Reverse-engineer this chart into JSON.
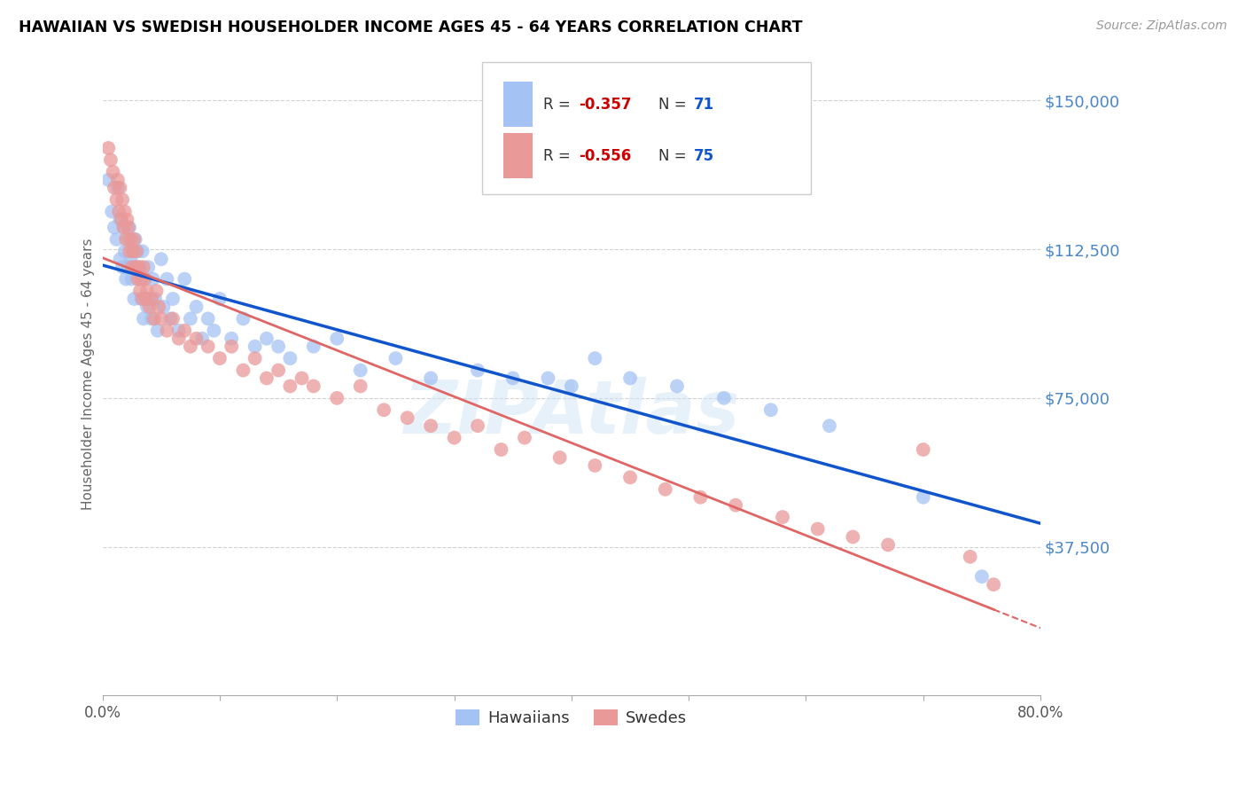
{
  "title": "HAWAIIAN VS SWEDISH HOUSEHOLDER INCOME AGES 45 - 64 YEARS CORRELATION CHART",
  "source": "Source: ZipAtlas.com",
  "ylabel": "Householder Income Ages 45 - 64 years",
  "xlim": [
    0.0,
    0.8
  ],
  "ylim": [
    0,
    162000
  ],
  "yticks": [
    37500,
    75000,
    112500,
    150000
  ],
  "ytick_labels": [
    "$37,500",
    "$75,000",
    "$112,500",
    "$150,000"
  ],
  "xticks": [
    0.0,
    0.1,
    0.2,
    0.3,
    0.4,
    0.5,
    0.6,
    0.7,
    0.8
  ],
  "hawaiian_color": "#a4c2f4",
  "swedish_color": "#ea9999",
  "hawaiian_line_color": "#1155cc",
  "swedish_line_color": "#e06666",
  "legend_R_hawaiian": "-0.357",
  "legend_N_hawaiian": "71",
  "legend_R_swedish": "-0.556",
  "legend_N_swedish": "75",
  "watermark": "ZIPAtlas",
  "background_color": "#ffffff",
  "grid_color": "#cccccc",
  "label_color": "#4a86c8",
  "hawaiians_x": [
    0.005,
    0.008,
    0.01,
    0.012,
    0.013,
    0.015,
    0.015,
    0.017,
    0.018,
    0.019,
    0.02,
    0.022,
    0.022,
    0.023,
    0.024,
    0.025,
    0.026,
    0.027,
    0.028,
    0.028,
    0.03,
    0.031,
    0.032,
    0.033,
    0.034,
    0.035,
    0.036,
    0.037,
    0.038,
    0.039,
    0.04,
    0.042,
    0.043,
    0.045,
    0.047,
    0.05,
    0.052,
    0.055,
    0.058,
    0.06,
    0.065,
    0.07,
    0.075,
    0.08,
    0.085,
    0.09,
    0.095,
    0.1,
    0.11,
    0.12,
    0.13,
    0.14,
    0.15,
    0.16,
    0.18,
    0.2,
    0.22,
    0.25,
    0.28,
    0.32,
    0.35,
    0.38,
    0.4,
    0.42,
    0.45,
    0.49,
    0.53,
    0.57,
    0.62,
    0.7,
    0.75
  ],
  "hawaiians_y": [
    130000,
    122000,
    118000,
    115000,
    128000,
    120000,
    110000,
    108000,
    118000,
    112000,
    105000,
    115000,
    108000,
    118000,
    110000,
    105000,
    112000,
    100000,
    115000,
    108000,
    112000,
    105000,
    108000,
    100000,
    112000,
    95000,
    105000,
    100000,
    98000,
    108000,
    100000,
    95000,
    105000,
    100000,
    92000,
    110000,
    98000,
    105000,
    95000,
    100000,
    92000,
    105000,
    95000,
    98000,
    90000,
    95000,
    92000,
    100000,
    90000,
    95000,
    88000,
    90000,
    88000,
    85000,
    88000,
    90000,
    82000,
    85000,
    80000,
    82000,
    80000,
    80000,
    78000,
    85000,
    80000,
    78000,
    75000,
    72000,
    68000,
    50000,
    30000
  ],
  "swedes_x": [
    0.005,
    0.007,
    0.009,
    0.01,
    0.012,
    0.013,
    0.014,
    0.015,
    0.016,
    0.017,
    0.018,
    0.019,
    0.02,
    0.021,
    0.022,
    0.023,
    0.024,
    0.025,
    0.026,
    0.027,
    0.028,
    0.029,
    0.03,
    0.031,
    0.032,
    0.033,
    0.034,
    0.035,
    0.036,
    0.037,
    0.038,
    0.04,
    0.042,
    0.044,
    0.046,
    0.048,
    0.05,
    0.055,
    0.06,
    0.065,
    0.07,
    0.075,
    0.08,
    0.09,
    0.1,
    0.11,
    0.12,
    0.13,
    0.14,
    0.15,
    0.16,
    0.17,
    0.18,
    0.2,
    0.22,
    0.24,
    0.26,
    0.28,
    0.3,
    0.32,
    0.34,
    0.36,
    0.39,
    0.42,
    0.45,
    0.48,
    0.51,
    0.54,
    0.58,
    0.61,
    0.64,
    0.67,
    0.7,
    0.74,
    0.76
  ],
  "swedes_y": [
    138000,
    135000,
    132000,
    128000,
    125000,
    130000,
    122000,
    128000,
    120000,
    125000,
    118000,
    122000,
    115000,
    120000,
    118000,
    112000,
    115000,
    108000,
    112000,
    115000,
    108000,
    112000,
    105000,
    108000,
    102000,
    105000,
    100000,
    108000,
    105000,
    100000,
    102000,
    98000,
    100000,
    95000,
    102000,
    98000,
    95000,
    92000,
    95000,
    90000,
    92000,
    88000,
    90000,
    88000,
    85000,
    88000,
    82000,
    85000,
    80000,
    82000,
    78000,
    80000,
    78000,
    75000,
    78000,
    72000,
    70000,
    68000,
    65000,
    68000,
    62000,
    65000,
    60000,
    58000,
    55000,
    52000,
    50000,
    48000,
    45000,
    42000,
    40000,
    38000,
    62000,
    35000,
    28000
  ]
}
